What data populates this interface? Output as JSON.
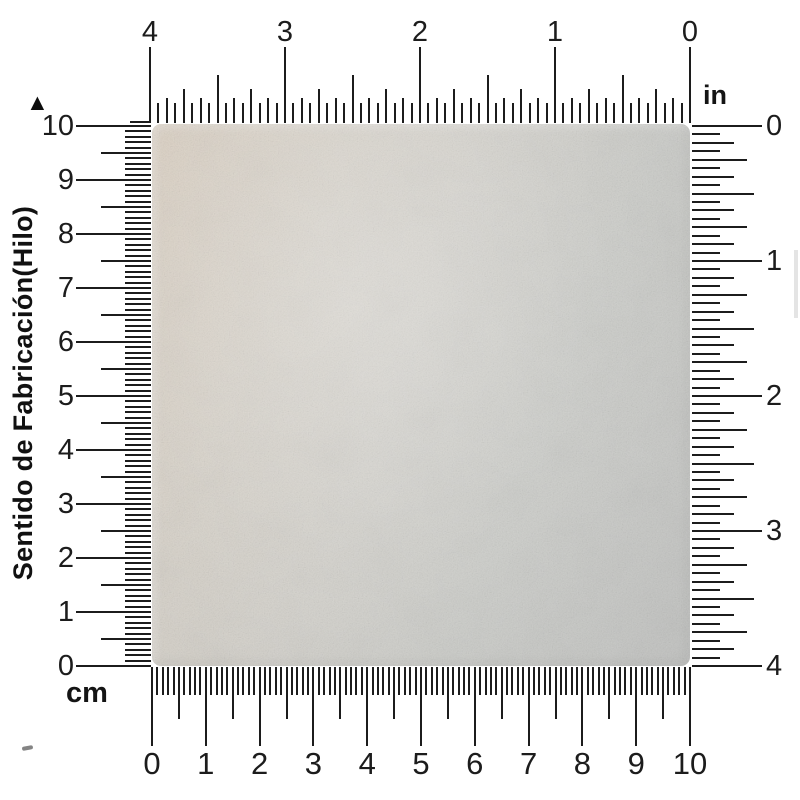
{
  "colors": {
    "ink": "#1c1c1c",
    "background": "#ffffff",
    "swatch_warm": "#dacfc1",
    "swatch_mid": "#d4d2cc",
    "swatch_cool": "#c5c6c4"
  },
  "marker_glyph": "▲",
  "side_label": "Sentido de Fabricación(Hilo)",
  "rulers": {
    "top": {
      "unit": "in",
      "subdivisions_per_unit": 16,
      "labels": [
        "4",
        "3",
        "2",
        "1",
        "0"
      ]
    },
    "right": {
      "unit": "in",
      "subdivisions_per_unit": 16,
      "labels": [
        "0",
        "1",
        "2",
        "3",
        "4"
      ]
    },
    "left": {
      "unit": "cm",
      "subdivisions_per_unit": 10,
      "labels": [
        "10",
        "9",
        "8",
        "7",
        "6",
        "5",
        "4",
        "3",
        "2",
        "1",
        "0"
      ]
    },
    "bottom": {
      "unit": "cm",
      "subdivisions_per_unit": 10,
      "labels": [
        "0",
        "1",
        "2",
        "3",
        "4",
        "5",
        "6",
        "7",
        "8",
        "9",
        "10"
      ]
    }
  }
}
